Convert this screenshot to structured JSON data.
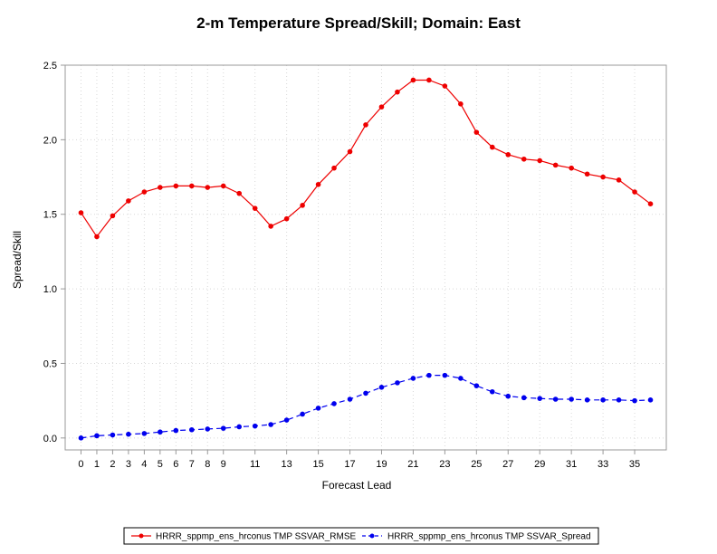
{
  "chart_data": {
    "type": "line",
    "title": "2-m Temperature Spread/Skill; Domain: East",
    "xlabel": "Forecast Lead",
    "ylabel": "Spread/Skill",
    "xlim": [
      -1,
      37
    ],
    "ylim": [
      -0.08,
      2.5
    ],
    "x_ticks": [
      0,
      1,
      2,
      3,
      4,
      5,
      6,
      7,
      8,
      9,
      11,
      13,
      15,
      17,
      19,
      21,
      23,
      25,
      27,
      29,
      31,
      33,
      35
    ],
    "y_ticks": [
      0.0,
      0.5,
      1.0,
      1.5,
      2.0,
      2.5
    ],
    "y_tick_labels": [
      "0.0",
      "0.5",
      "1.0",
      "1.5",
      "2.0",
      "2.5"
    ],
    "grid": true,
    "legend_position": "bottom",
    "x": [
      0,
      1,
      2,
      3,
      4,
      5,
      6,
      7,
      8,
      9,
      10,
      11,
      12,
      13,
      14,
      15,
      16,
      17,
      18,
      19,
      20,
      21,
      22,
      23,
      24,
      25,
      26,
      27,
      28,
      29,
      30,
      31,
      32,
      33,
      34,
      35,
      36
    ],
    "series": [
      {
        "name": "HRRR_sppmp_ens_hrconus TMP SSVAR_RMSE",
        "color": "#ee0000",
        "dash": "solid",
        "values": [
          1.51,
          1.35,
          1.49,
          1.59,
          1.65,
          1.68,
          1.69,
          1.69,
          1.68,
          1.69,
          1.64,
          1.54,
          1.42,
          1.47,
          1.56,
          1.7,
          1.81,
          1.92,
          2.1,
          2.22,
          2.32,
          2.4,
          2.4,
          2.36,
          2.24,
          2.05,
          1.95,
          1.9,
          1.87,
          1.86,
          1.83,
          1.81,
          1.77,
          1.75,
          1.73,
          1.65,
          1.57
        ]
      },
      {
        "name": "HRRR_sppmp_ens_hrconus TMP SSVAR_Spread",
        "color": "#0000ee",
        "dash": "dashed",
        "values": [
          0.0,
          0.015,
          0.02,
          0.025,
          0.03,
          0.04,
          0.05,
          0.055,
          0.06,
          0.065,
          0.075,
          0.08,
          0.09,
          0.12,
          0.16,
          0.2,
          0.23,
          0.26,
          0.3,
          0.34,
          0.37,
          0.4,
          0.42,
          0.42,
          0.4,
          0.35,
          0.31,
          0.28,
          0.27,
          0.265,
          0.26,
          0.26,
          0.255,
          0.255,
          0.255,
          0.25,
          0.255
        ]
      }
    ]
  }
}
